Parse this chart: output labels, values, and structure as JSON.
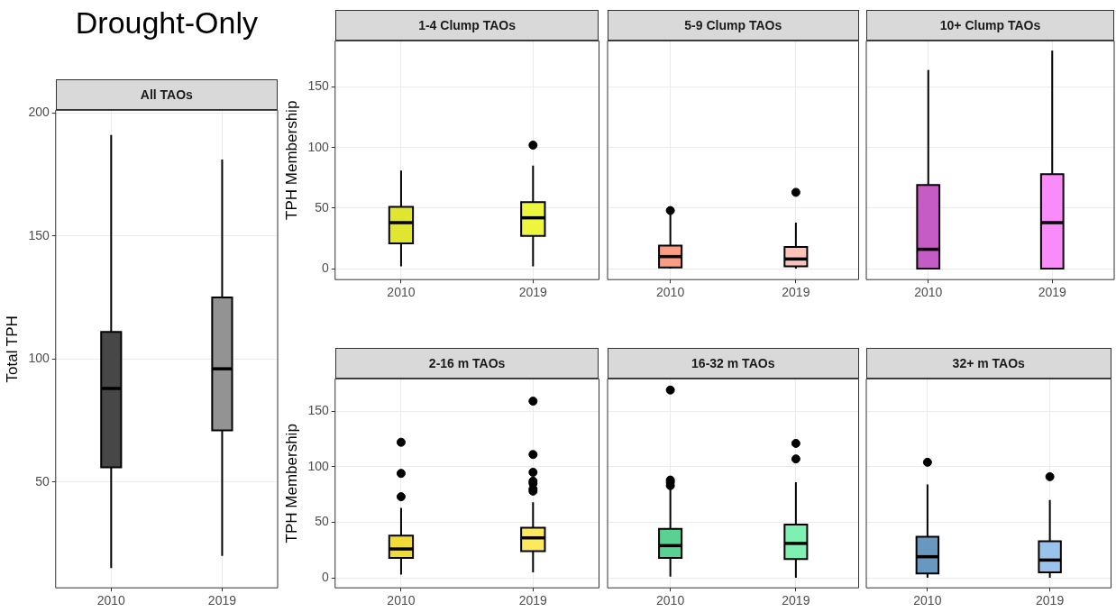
{
  "chart_data": [
    {
      "type": "box",
      "title": "All TAOs",
      "annotations": [
        "Drought-Only"
      ],
      "ylabel": "Total TPH",
      "categories": [
        "2010",
        "2019"
      ],
      "colors": [
        "#474747",
        "#939393"
      ],
      "ylim": [
        7,
        201
      ],
      "yticks": [
        50,
        100,
        150,
        200
      ],
      "grid": true,
      "legend": false,
      "boxes": [
        {
          "low": 15,
          "q1": 56,
          "median": 88,
          "q3": 111,
          "high": 191
        },
        {
          "low": 20,
          "q1": 71,
          "median": 96,
          "q3": 125,
          "high": 181
        }
      ]
    },
    {
      "type": "box",
      "title": "1-4 Clump TAOs",
      "ylabel": "TPH Membership",
      "categories": [
        "2010",
        "2019"
      ],
      "colors": [
        "#e0e630",
        "#eef53e"
      ],
      "ylim": [
        -9,
        188
      ],
      "yticks": [
        0,
        50,
        100,
        150
      ],
      "grid": true,
      "legend": false,
      "boxes": [
        {
          "low": 2,
          "q1": 21,
          "median": 38,
          "q3": 51,
          "high": 81
        },
        {
          "low": 2,
          "q1": 27,
          "median": 42,
          "q3": 55,
          "high": 85,
          "outliers": [
            102
          ]
        }
      ]
    },
    {
      "type": "box",
      "title": "5-9 Clump TAOs",
      "categories": [
        "2010",
        "2019"
      ],
      "colors": [
        "#f99e85",
        "#fdc3b8"
      ],
      "ylim": [
        -9,
        188
      ],
      "yticks": [
        0,
        50,
        100,
        150
      ],
      "grid": true,
      "legend": false,
      "tick_labels": "x",
      "boxes": [
        {
          "low": 0,
          "q1": 1,
          "median": 10,
          "q3": 19,
          "high": 46,
          "outliers": [
            48
          ]
        },
        {
          "low": 0,
          "q1": 2,
          "median": 8,
          "q3": 18,
          "high": 38,
          "outliers": [
            63
          ]
        }
      ]
    },
    {
      "type": "box",
      "title": "10+ Clump TAOs",
      "categories": [
        "2010",
        "2019"
      ],
      "colors": [
        "#c55cc5",
        "#f98cf8"
      ],
      "ylim": [
        -9,
        188
      ],
      "yticks": [
        0,
        50,
        100,
        150
      ],
      "grid": true,
      "legend": false,
      "tick_labels": "x",
      "boxes": [
        {
          "low": 0,
          "q1": 0,
          "median": 16,
          "q3": 69,
          "high": 164
        },
        {
          "low": 0,
          "q1": 0,
          "median": 38,
          "q3": 78,
          "high": 180
        }
      ]
    },
    {
      "type": "box",
      "title": "2-16 m TAOs",
      "ylabel": "TPH Membership",
      "categories": [
        "2010",
        "2019"
      ],
      "colors": [
        "#f0db36",
        "#fde95e"
      ],
      "ylim": [
        -9,
        179
      ],
      "yticks": [
        0,
        50,
        100,
        150
      ],
      "grid": true,
      "legend": false,
      "boxes": [
        {
          "low": 3,
          "q1": 18,
          "median": 26,
          "q3": 38,
          "high": 63,
          "outliers": [
            73,
            94,
            122
          ]
        },
        {
          "low": 5,
          "q1": 24,
          "median": 36,
          "q3": 45,
          "high": 68,
          "outliers": [
            78,
            80,
            85,
            87,
            95,
            111,
            159
          ]
        }
      ]
    },
    {
      "type": "box",
      "title": "16-32 m TAOs",
      "categories": [
        "2010",
        "2019"
      ],
      "colors": [
        "#5ad193",
        "#7df0b2"
      ],
      "ylim": [
        -9,
        179
      ],
      "yticks": [
        0,
        50,
        100,
        150
      ],
      "grid": true,
      "legend": false,
      "tick_labels": "x",
      "boxes": [
        {
          "low": 1,
          "q1": 18,
          "median": 29,
          "q3": 44,
          "high": 80,
          "outliers": [
            83,
            86,
            88,
            169
          ]
        },
        {
          "low": 0,
          "q1": 17,
          "median": 31,
          "q3": 48,
          "high": 86,
          "outliers": [
            107,
            121
          ]
        }
      ]
    },
    {
      "type": "box",
      "title": "32+ m TAOs",
      "categories": [
        "2010",
        "2019"
      ],
      "colors": [
        "#6897bf",
        "#99c3ea"
      ],
      "ylim": [
        -9,
        179
      ],
      "yticks": [
        0,
        50,
        100,
        150
      ],
      "grid": true,
      "legend": false,
      "tick_labels": "x",
      "boxes": [
        {
          "low": 0,
          "q1": 4,
          "median": 19,
          "q3": 37,
          "high": 84,
          "outliers": [
            104
          ]
        },
        {
          "low": 0,
          "q1": 5,
          "median": 16,
          "q3": 33,
          "high": 70,
          "outliers": [
            91
          ]
        }
      ]
    }
  ]
}
